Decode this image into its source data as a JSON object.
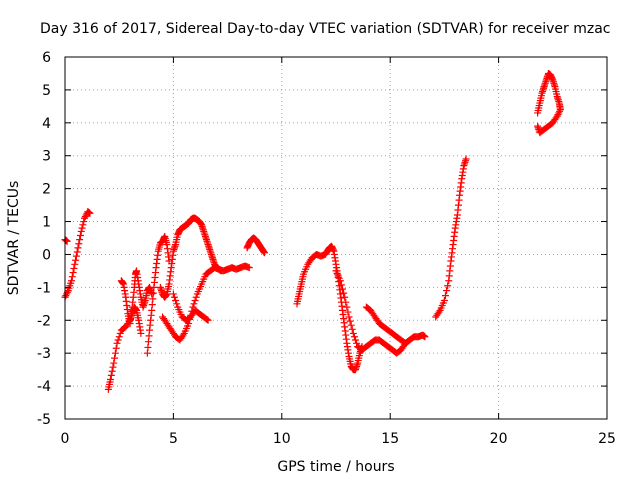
{
  "chart_data": {
    "type": "scatter",
    "title": "Day 316 of 2017, Sidereal Day-to-day VTEC variation (SDTVAR) for receiver mzac",
    "xlabel": "GPS time / hours",
    "ylabel": "SDTVAR / TECUs",
    "xlim": [
      0,
      25
    ],
    "ylim": [
      -5,
      6
    ],
    "xticks": [
      0,
      5,
      10,
      15,
      20,
      25
    ],
    "yticks": [
      -5,
      -4,
      -3,
      -2,
      -1,
      0,
      1,
      2,
      3,
      4,
      5,
      6
    ],
    "xtick_labels": [
      "0",
      "5",
      "10",
      "15",
      "20",
      "25"
    ],
    "ytick_labels": [
      "-5",
      "-4",
      "-3",
      "-2",
      "-1",
      "0",
      "1",
      "2",
      "3",
      "4",
      "5",
      "6"
    ],
    "grid": true,
    "marker": "plus",
    "color": "#ff0000",
    "series": [
      {
        "x": [
          0.0,
          0.1
        ],
        "y": [
          0.45,
          0.4
        ]
      },
      {
        "x": [
          0.0,
          0.15,
          0.3,
          0.45,
          0.6,
          0.75,
          0.9,
          1.05,
          1.15
        ],
        "y": [
          -1.3,
          -1.1,
          -0.8,
          -0.3,
          0.2,
          0.7,
          1.1,
          1.3,
          1.25
        ]
      },
      {
        "x": [
          2.0,
          2.1,
          2.25,
          2.4,
          2.6,
          2.8,
          3.0,
          3.1,
          3.2,
          3.3,
          3.4,
          3.5
        ],
        "y": [
          -4.1,
          -3.8,
          -3.3,
          -2.7,
          -2.3,
          -2.2,
          -2.0,
          -1.8,
          -1.6,
          -1.7,
          -2.0,
          -2.4
        ]
      },
      {
        "x": [
          2.6,
          2.7,
          2.8,
          2.9,
          3.0,
          3.1,
          3.2,
          3.25,
          3.3,
          3.4,
          3.5,
          3.6,
          3.7,
          3.8,
          3.9,
          4.0
        ],
        "y": [
          -0.8,
          -0.9,
          -1.3,
          -1.8,
          -2.1,
          -1.6,
          -1.0,
          -0.6,
          -0.5,
          -0.9,
          -1.3,
          -1.6,
          -1.4,
          -1.1,
          -1.0,
          -1.2
        ]
      },
      {
        "x": [
          3.8,
          3.9,
          4.0,
          4.1,
          4.2,
          4.3,
          4.4,
          4.5,
          4.6,
          4.7,
          4.8
        ],
        "y": [
          -3.0,
          -2.3,
          -1.7,
          -1.0,
          -0.4,
          0.1,
          0.35,
          0.4,
          0.55,
          0.3,
          -0.2
        ]
      },
      {
        "x": [
          4.4,
          4.5,
          4.6,
          4.7,
          4.8,
          4.9,
          5.0,
          5.1,
          5.2,
          5.3,
          5.4,
          5.5,
          5.6,
          5.7,
          5.8,
          5.9,
          6.0,
          6.1,
          6.2,
          6.3,
          6.4,
          6.5,
          6.6,
          6.7,
          6.8,
          6.9,
          7.0,
          7.1,
          7.2
        ],
        "y": [
          -1.0,
          -1.2,
          -1.3,
          -1.2,
          -0.9,
          -0.4,
          0.1,
          0.3,
          0.6,
          0.75,
          0.8,
          0.85,
          0.9,
          0.95,
          1.05,
          1.1,
          1.1,
          1.05,
          1.0,
          0.9,
          0.7,
          0.5,
          0.3,
          0.1,
          -0.1,
          -0.3,
          -0.4,
          -0.45,
          -0.5
        ]
      },
      {
        "x": [
          4.5,
          4.7,
          4.9,
          5.1,
          5.3,
          5.5,
          5.7,
          5.9,
          6.1,
          6.3,
          6.5,
          6.7,
          6.9,
          7.1,
          7.3,
          7.5,
          7.7,
          7.9,
          8.1,
          8.3,
          8.5
        ],
        "y": [
          -1.9,
          -2.1,
          -2.3,
          -2.5,
          -2.6,
          -2.4,
          -2.1,
          -1.6,
          -1.2,
          -0.9,
          -0.6,
          -0.5,
          -0.4,
          -0.45,
          -0.5,
          -0.45,
          -0.4,
          -0.45,
          -0.4,
          -0.35,
          -0.4
        ]
      },
      {
        "x": [
          5.0,
          5.2,
          5.4,
          5.6,
          5.8,
          6.0,
          6.2,
          6.4,
          6.6
        ],
        "y": [
          -1.2,
          -1.6,
          -1.9,
          -2.0,
          -1.9,
          -1.7,
          -1.8,
          -1.9,
          -2.0
        ]
      },
      {
        "x": [
          8.4,
          8.5,
          8.6,
          8.7,
          8.8,
          8.9,
          9.0,
          9.1,
          9.2
        ],
        "y": [
          0.2,
          0.35,
          0.45,
          0.5,
          0.45,
          0.35,
          0.25,
          0.15,
          0.05
        ]
      },
      {
        "x": [
          10.7,
          10.8,
          10.9,
          11.0,
          11.2,
          11.4,
          11.6,
          11.8,
          12.0,
          12.1,
          12.2,
          12.3,
          12.4,
          12.5,
          12.6,
          12.7,
          12.8,
          12.9,
          13.0,
          13.1,
          13.2,
          13.3,
          13.4,
          13.5,
          13.6,
          13.7
        ],
        "y": [
          -1.5,
          -1.2,
          -0.9,
          -0.6,
          -0.3,
          -0.1,
          0.0,
          -0.05,
          0.0,
          0.1,
          0.2,
          0.25,
          0.1,
          -0.3,
          -0.7,
          -1.2,
          -1.7,
          -2.2,
          -2.7,
          -3.1,
          -3.4,
          -3.5,
          -3.5,
          -3.3,
          -3.0,
          -2.8
        ]
      },
      {
        "x": [
          12.5,
          12.7,
          12.9,
          13.1,
          13.3,
          13.5,
          13.7,
          13.9,
          14.1,
          14.3,
          14.5,
          14.7,
          14.9,
          15.1,
          15.3,
          15.5,
          15.7,
          15.9,
          16.1,
          16.3,
          16.5,
          16.6
        ],
        "y": [
          -0.5,
          -0.8,
          -1.3,
          -1.9,
          -2.4,
          -2.8,
          -2.9,
          -2.8,
          -2.7,
          -2.6,
          -2.6,
          -2.7,
          -2.8,
          -2.9,
          -3.0,
          -2.9,
          -2.7,
          -2.6,
          -2.5,
          -2.5,
          -2.45,
          -2.5
        ]
      },
      {
        "x": [
          13.9,
          14.1,
          14.3,
          14.5,
          14.7,
          14.9,
          15.1,
          15.3,
          15.5,
          15.7,
          15.9
        ],
        "y": [
          -1.6,
          -1.7,
          -1.9,
          -2.1,
          -2.2,
          -2.3,
          -2.4,
          -2.5,
          -2.6,
          -2.7,
          -2.6
        ]
      },
      {
        "x": [
          17.1,
          17.3,
          17.5,
          17.7,
          17.8,
          17.9,
          18.0,
          18.1,
          18.2,
          18.3,
          18.4,
          18.5
        ],
        "y": [
          -1.9,
          -1.7,
          -1.4,
          -0.8,
          -0.2,
          0.3,
          0.8,
          1.2,
          1.8,
          2.3,
          2.7,
          2.9
        ]
      },
      {
        "x": [
          21.8,
          21.9,
          22.0,
          22.1,
          22.2,
          22.3,
          22.4,
          22.5,
          22.6,
          22.7,
          22.8,
          22.85,
          22.7,
          22.5,
          22.3,
          22.1,
          21.9,
          21.8
        ],
        "y": [
          4.3,
          4.6,
          4.9,
          5.1,
          5.3,
          5.5,
          5.45,
          5.3,
          5.1,
          4.8,
          4.6,
          4.4,
          4.2,
          4.0,
          3.9,
          3.8,
          3.7,
          3.9
        ]
      }
    ]
  }
}
